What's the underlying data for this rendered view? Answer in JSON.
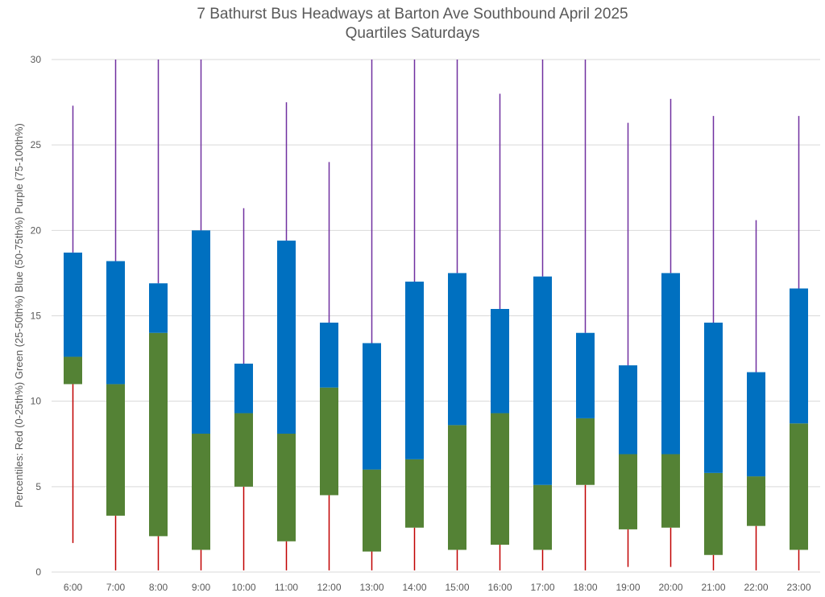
{
  "chart_data": {
    "type": "box",
    "title": "7 Bathurst Bus Headways at Barton Ave Southbound April 2025",
    "subtitle": "Quartiles Saturdays",
    "ylabel": "Percentiles:  Red (0-25th%)  Green (25-50th%)  Blue (50-75th%)  Purple (75-100th%)",
    "xlabel": "",
    "ylim": [
      0,
      30
    ],
    "yticks": [
      0,
      5,
      10,
      15,
      20,
      25,
      30
    ],
    "grid": true,
    "categories": [
      "6:00",
      "7:00",
      "8:00",
      "9:00",
      "10:00",
      "11:00",
      "12:00",
      "13:00",
      "14:00",
      "15:00",
      "16:00",
      "17:00",
      "18:00",
      "19:00",
      "20:00",
      "21:00",
      "22:00",
      "23:00"
    ],
    "min": [
      1.7,
      0.1,
      0.1,
      0.1,
      0.1,
      0.1,
      0.1,
      0.1,
      0.1,
      0.1,
      0.1,
      0.1,
      0.1,
      0.3,
      0.3,
      0.1,
      0.1,
      0.1
    ],
    "q1": [
      11.0,
      3.3,
      2.1,
      1.3,
      5.0,
      1.8,
      4.5,
      1.2,
      2.6,
      1.3,
      1.6,
      1.3,
      5.1,
      2.5,
      2.6,
      1.0,
      2.7,
      1.3
    ],
    "median": [
      12.6,
      11.0,
      14.0,
      8.1,
      9.3,
      8.1,
      10.8,
      6.0,
      6.6,
      8.6,
      9.3,
      5.1,
      9.0,
      6.9,
      6.9,
      5.8,
      5.6,
      8.7
    ],
    "q3": [
      18.7,
      18.2,
      16.9,
      20.0,
      12.2,
      19.4,
      14.6,
      13.4,
      17.0,
      17.5,
      15.4,
      17.3,
      14.0,
      12.1,
      17.5,
      14.6,
      11.7,
      16.6
    ],
    "max": [
      27.3,
      30,
      30,
      30,
      21.3,
      27.5,
      24.0,
      30,
      30,
      30,
      28.0,
      30,
      30,
      26.3,
      27.7,
      26.7,
      20.6,
      26.7
    ],
    "colors": {
      "low": "#C00000",
      "q2": "#548235",
      "q3": "#0070C0",
      "high": "#7030A0",
      "grid": "#D9D9D9",
      "text": "#595959"
    }
  }
}
